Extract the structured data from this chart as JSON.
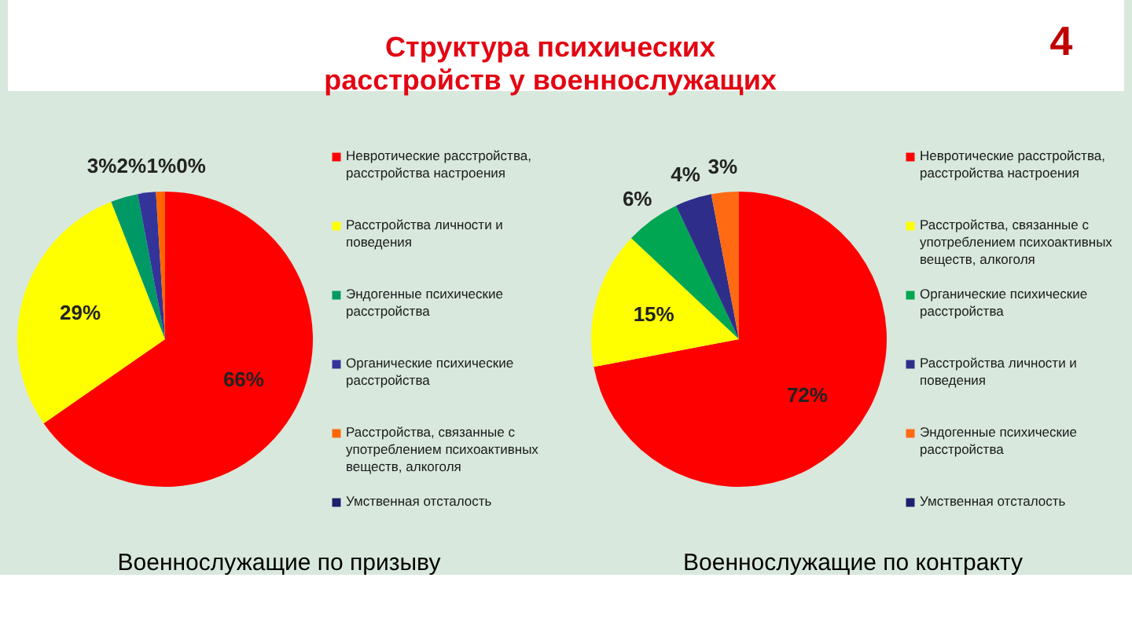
{
  "chart_data": [
    {
      "type": "pie",
      "title": "Военнослужащие по призыву",
      "annotations": [
        "Структура психических расстройств у военнослужащих"
      ],
      "categories": [
        "Невротические расстройства, расстройства настроения",
        "Расстройства личности и поведения",
        "Эндогенные психические расстройства",
        "Органические психические расстройства",
        "Расстройства, связанные с употреблением психоактивных веществ, алкоголя",
        "Умственная отсталость"
      ],
      "values": [
        66,
        29,
        3,
        2,
        1,
        0
      ],
      "colors": [
        "#ff0000",
        "#ffff00",
        "#009966",
        "#333399",
        "#ff6600",
        "#1f1f6e"
      ],
      "value_labels": [
        "66%",
        "29%",
        "3%",
        "2%",
        "1%",
        "0%"
      ],
      "legend": "right"
    },
    {
      "type": "pie",
      "title": "Военнослужащие по контракту",
      "annotations": [
        "4"
      ],
      "categories": [
        "Невротические расстройства, расстройства настроения",
        "Расстройства, связанные с употреблением психоактивных веществ, алкоголя",
        "Органические психические расстройства",
        "Расстройства личности и поведения",
        "Эндогенные психические расстройства",
        "Умственная отсталость"
      ],
      "values": [
        72,
        15,
        6,
        4,
        3,
        0
      ],
      "colors": [
        "#ff0000",
        "#ffff00",
        "#00a651",
        "#2e2e8a",
        "#ff6a13",
        "#1f1f6e"
      ],
      "value_labels": [
        "72%",
        "15%",
        "6%",
        "4%",
        "3%",
        null
      ],
      "legend": "right"
    }
  ]
}
